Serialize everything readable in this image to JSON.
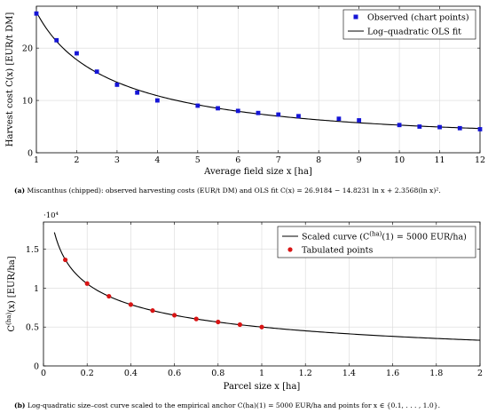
{
  "chart_data": [
    {
      "type": "scatter",
      "xlabel": "Average field size x [ha]",
      "ylabel": "Harvest cost C(x) [EUR/t DM]",
      "xlim": [
        1,
        12
      ],
      "ylim": [
        0,
        28
      ],
      "x_ticks": [
        "1",
        "2",
        "3",
        "4",
        "5",
        "6",
        "7",
        "8",
        "9",
        "10",
        "11",
        "12"
      ],
      "y_ticks": [
        "0",
        "10",
        "20"
      ],
      "grid": true,
      "legend_position": "top-right",
      "marker_color": "#1515d6",
      "series": [
        {
          "name": "Observed (chart points)",
          "kind": "points",
          "marker": "square",
          "x": [
            1,
            1.5,
            2,
            2.5,
            3,
            3.5,
            4,
            5,
            5.5,
            6,
            6.5,
            7,
            7.5,
            8.5,
            9,
            10,
            10.5,
            11,
            11.5,
            12
          ],
          "y": [
            26.6,
            21.5,
            19.0,
            15.5,
            13.0,
            11.5,
            10.0,
            9.0,
            8.5,
            8.0,
            7.6,
            7.3,
            7.0,
            6.5,
            6.2,
            5.3,
            5.0,
            4.9,
            4.7,
            4.5
          ]
        },
        {
          "name": "Log–quadratic OLS fit",
          "kind": "line",
          "formula": "C(x) = 26.9184 − 14.8231 ln x + 2.3568 (ln x)^2"
        }
      ],
      "caption_label": "(a)",
      "caption_text": " Miscanthus (chipped): observed harvesting costs (EUR/t DM) and OLS fit C(x) = 26.9184 − 14.8231 ln x + 2.3568(ln x)²."
    },
    {
      "type": "scatter",
      "xlabel": "Parcel size x [ha]",
      "ylabel": "C(ha)(x) [EUR/ha]",
      "ylabel_parts": [
        "C",
        "(ha)",
        "(x) [EUR/ha]"
      ],
      "y_multiplier": "·10⁴",
      "xlim": [
        0,
        2
      ],
      "ylim": [
        0,
        1.85
      ],
      "x_ticks": [
        "0",
        "0.2",
        "0.4",
        "0.6",
        "0.8",
        "1",
        "1.2",
        "1.4",
        "1.6",
        "1.8",
        "2"
      ],
      "y_ticks": [
        "0",
        "0.5",
        "1",
        "1.5"
      ],
      "grid": true,
      "legend_position": "top-right",
      "marker_color": "#d81515",
      "series": [
        {
          "name": "Scaled curve (C(ha)(1) = 5000 EUR/ha)",
          "name_parts": [
            "Scaled curve (C",
            "(ha)",
            "(1) = 5000 EUR/ha)"
          ],
          "kind": "line",
          "formula": "C(ha)(x) = 0.5 · (26.9184 − 14.8231 ln x + 2.3568 (ln x)^2) / 26.9184 · 10^4"
        },
        {
          "name": "Tabulated points",
          "kind": "points",
          "marker": "circle",
          "x": [
            0.1,
            0.2,
            0.3,
            0.4,
            0.5,
            0.6,
            0.7,
            0.8,
            0.9,
            1.0
          ],
          "y": [
            1.364,
            1.059,
            0.896,
            0.789,
            0.712,
            0.652,
            0.604,
            0.565,
            0.531,
            0.5
          ]
        }
      ],
      "caption_label": "(b)",
      "caption_text": " Log-quadratic size–cost curve scaled to the empirical anchor C(ha)(1) = 5000 EUR/ha and points for x ∈ {0.1, . . . , 1.0}."
    }
  ]
}
